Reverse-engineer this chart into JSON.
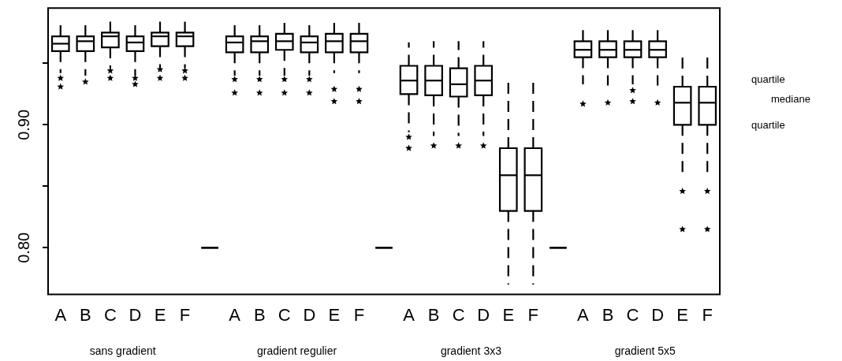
{
  "chart_data": {
    "type": "box",
    "categories": [
      "A",
      "B",
      "C",
      "D",
      "E",
      "F",
      null,
      "A",
      "B",
      "C",
      "D",
      "E",
      "F",
      null,
      "A",
      "B",
      "C",
      "D",
      "E",
      "F",
      null,
      "A",
      "B",
      "C",
      "D",
      "E",
      "F"
    ],
    "boxes": [
      {
        "low": 0.942,
        "q1": 0.96,
        "median": 0.966,
        "q3": 0.972,
        "high": 0.985,
        "outliers": [
          0.938,
          0.931
        ]
      },
      {
        "low": 0.94,
        "q1": 0.96,
        "median": 0.968,
        "q3": 0.972,
        "high": 0.985,
        "outliers": [
          0.935
        ]
      },
      {
        "low": 0.946,
        "q1": 0.963,
        "median": 0.972,
        "q3": 0.975,
        "high": 0.985,
        "outliers": [
          0.944,
          0.938
        ]
      },
      {
        "low": 0.94,
        "q1": 0.96,
        "median": 0.967,
        "q3": 0.972,
        "high": 0.985,
        "outliers": [
          0.938,
          0.933
        ]
      },
      {
        "low": 0.946,
        "q1": 0.964,
        "median": 0.972,
        "q3": 0.975,
        "high": 0.984,
        "outliers": [
          0.945,
          0.938
        ]
      },
      {
        "low": 0.946,
        "q1": 0.964,
        "median": 0.972,
        "q3": 0.975,
        "high": 0.984,
        "outliers": [
          0.944,
          0.938
        ]
      },
      {
        "low": 0.8,
        "q1": 0.8,
        "median": 0.8,
        "q3": 0.8,
        "high": 0.8
      },
      {
        "low": 0.94,
        "q1": 0.959,
        "median": 0.967,
        "q3": 0.972,
        "high": 0.985,
        "outliers": [
          0.937,
          0.926
        ]
      },
      {
        "low": 0.94,
        "q1": 0.959,
        "median": 0.968,
        "q3": 0.972,
        "high": 0.985,
        "outliers": [
          0.937,
          0.926
        ]
      },
      {
        "low": 0.94,
        "q1": 0.961,
        "median": 0.968,
        "q3": 0.974,
        "high": 0.986,
        "outliers": [
          0.937,
          0.926
        ]
      },
      {
        "low": 0.94,
        "q1": 0.959,
        "median": 0.967,
        "q3": 0.972,
        "high": 0.985,
        "outliers": [
          0.937,
          0.926
        ]
      },
      {
        "low": 0.942,
        "q1": 0.959,
        "median": 0.968,
        "q3": 0.974,
        "high": 0.985,
        "outliers": [
          0.929,
          0.919
        ]
      },
      {
        "low": 0.942,
        "q1": 0.959,
        "median": 0.968,
        "q3": 0.974,
        "high": 0.985,
        "outliers": [
          0.929,
          0.919
        ]
      },
      {
        "low": 0.8,
        "q1": 0.8,
        "median": 0.8,
        "q3": 0.8,
        "high": 0.8
      },
      {
        "low": 0.894,
        "q1": 0.925,
        "median": 0.936,
        "q3": 0.948,
        "high": 0.967,
        "outliers": [
          0.89,
          0.881
        ]
      },
      {
        "low": 0.891,
        "q1": 0.924,
        "median": 0.936,
        "q3": 0.948,
        "high": 0.968,
        "outliers": [
          0.883
        ]
      },
      {
        "low": 0.891,
        "q1": 0.923,
        "median": 0.933,
        "q3": 0.946,
        "high": 0.968,
        "outliers": [
          0.883
        ]
      },
      {
        "low": 0.891,
        "q1": 0.924,
        "median": 0.936,
        "q3": 0.948,
        "high": 0.968,
        "outliers": [
          0.883
        ]
      },
      {
        "low": 0.77,
        "q1": 0.83,
        "median": 0.859,
        "q3": 0.881,
        "high": 0.939
      },
      {
        "low": 0.77,
        "q1": 0.83,
        "median": 0.859,
        "q3": 0.881,
        "high": 0.939
      },
      {
        "low": 0.8,
        "q1": 0.8,
        "median": 0.8,
        "q3": 0.8,
        "high": 0.8
      },
      {
        "low": 0.933,
        "q1": 0.955,
        "median": 0.961,
        "q3": 0.968,
        "high": 0.981,
        "outliers": [
          0.917
        ]
      },
      {
        "low": 0.932,
        "q1": 0.955,
        "median": 0.961,
        "q3": 0.968,
        "high": 0.981,
        "outliers": [
          0.918
        ]
      },
      {
        "low": 0.933,
        "q1": 0.955,
        "median": 0.961,
        "q3": 0.968,
        "high": 0.981,
        "outliers": [
          0.928,
          0.919
        ]
      },
      {
        "low": 0.932,
        "q1": 0.955,
        "median": 0.961,
        "q3": 0.968,
        "high": 0.981,
        "outliers": [
          0.918
        ]
      },
      {
        "low": 0.859,
        "q1": 0.9,
        "median": 0.918,
        "q3": 0.931,
        "high": 0.957,
        "outliers": [
          0.846,
          0.815
        ]
      },
      {
        "low": 0.859,
        "q1": 0.9,
        "median": 0.918,
        "q3": 0.931,
        "high": 0.957,
        "outliers": [
          0.846,
          0.815
        ]
      }
    ],
    "color": "#000000",
    "marker": "star",
    "ylim": [
      0.762,
      0.995
    ],
    "yticks": [
      {
        "value": 0.8,
        "label": "0.80"
      },
      {
        "value": 0.85,
        "label": null
      },
      {
        "value": 0.9,
        "label": "0.90"
      },
      {
        "value": 0.95,
        "label": null
      }
    ],
    "grid": false,
    "legend": false,
    "annotations": [
      "sans gradient",
      "gradient regulier",
      "gradient 3x3",
      "gradient 5x5",
      "quartile",
      "mediane",
      "quartile"
    ]
  }
}
